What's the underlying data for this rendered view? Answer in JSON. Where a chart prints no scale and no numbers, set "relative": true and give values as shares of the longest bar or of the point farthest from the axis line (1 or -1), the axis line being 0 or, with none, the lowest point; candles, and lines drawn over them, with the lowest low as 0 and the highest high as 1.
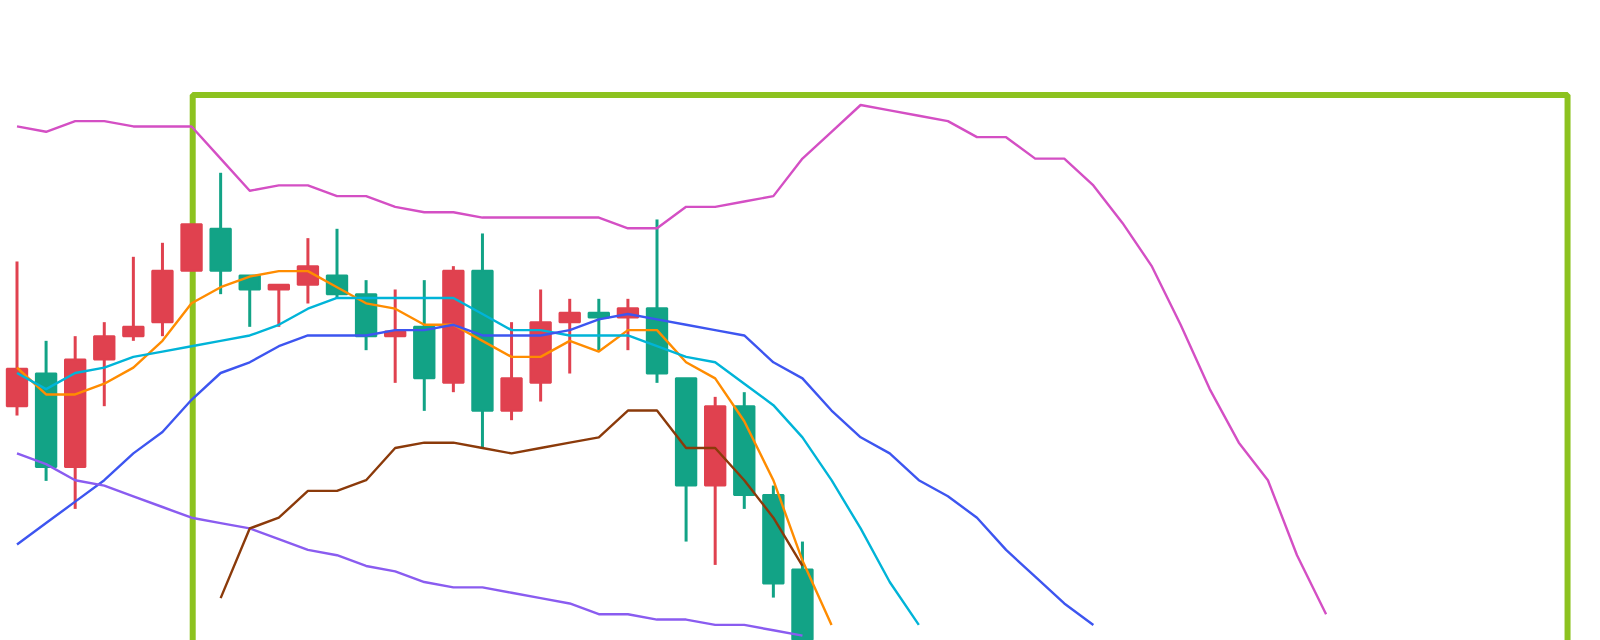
{
  "chart_data": [
    {
      "type": "candlestick",
      "relative": true,
      "tick_labels": false,
      "categories": [
        null,
        null,
        null,
        null,
        null,
        null,
        null,
        null,
        null,
        null,
        null,
        null,
        null,
        null,
        null,
        null,
        null,
        null,
        null,
        null,
        null,
        null,
        null,
        null,
        null,
        null,
        null,
        null
      ],
      "ohlc": [
        [
          0.5,
          0.81,
          0.48,
          0.58
        ],
        [
          0.57,
          0.64,
          0.34,
          0.37
        ],
        [
          0.37,
          0.65,
          0.28,
          0.6
        ],
        [
          0.6,
          0.68,
          0.5,
          0.65
        ],
        [
          0.65,
          0.82,
          0.64,
          0.67
        ],
        [
          0.68,
          0.85,
          0.65,
          0.79
        ],
        [
          0.79,
          0.89,
          0.79,
          0.89
        ],
        [
          0.88,
          1.0,
          0.74,
          0.79
        ],
        [
          0.78,
          0.78,
          0.67,
          0.75
        ],
        [
          0.75,
          0.76,
          0.67,
          0.76
        ],
        [
          0.76,
          0.86,
          0.72,
          0.8
        ],
        [
          0.78,
          0.88,
          0.73,
          0.74
        ],
        [
          0.74,
          0.77,
          0.62,
          0.65
        ],
        [
          0.65,
          0.75,
          0.55,
          0.66
        ],
        [
          0.67,
          0.77,
          0.49,
          0.56
        ],
        [
          0.55,
          0.8,
          0.53,
          0.79
        ],
        [
          0.79,
          0.87,
          0.41,
          0.49
        ],
        [
          0.49,
          0.68,
          0.47,
          0.56
        ],
        [
          0.55,
          0.75,
          0.51,
          0.68
        ],
        [
          0.68,
          0.73,
          0.57,
          0.7
        ],
        [
          0.7,
          0.73,
          0.62,
          0.69
        ],
        [
          0.69,
          0.73,
          0.62,
          0.71
        ],
        [
          0.71,
          0.9,
          0.55,
          0.57
        ],
        [
          0.56,
          0.56,
          0.21,
          0.33
        ],
        [
          0.33,
          0.52,
          0.16,
          0.5
        ],
        [
          0.5,
          0.53,
          0.28,
          0.31
        ],
        [
          0.31,
          0.33,
          0.09,
          0.12
        ],
        [
          0.15,
          0.21,
          0.0,
          0.0
        ]
      ],
      "colors": [
        "#e0414f",
        "#12a386",
        "#e0414f",
        "#e0414f",
        "#e0414f",
        "#e0414f",
        "#e0414f",
        "#12a386",
        "#12a386",
        "#e0414f",
        "#e0414f",
        "#12a386",
        "#12a386",
        "#e0414f",
        "#12a386",
        "#e0414f",
        "#12a386",
        "#e0414f",
        "#e0414f",
        "#e0414f",
        "#12a386",
        "#e0414f",
        "#12a386",
        "#12a386",
        "#e0414f",
        "#12a386",
        "#12a386",
        "#12a386"
      ]
    },
    {
      "type": "line",
      "relative": true,
      "tick_labels": false,
      "categories": [
        null,
        null,
        null,
        null,
        null,
        null,
        null,
        null,
        null,
        null,
        null,
        null,
        null,
        null,
        null,
        null,
        null,
        null,
        null,
        null,
        null,
        null,
        null,
        null,
        null,
        null,
        null,
        null,
        null,
        null,
        null,
        null,
        null,
        null,
        null,
        null,
        null,
        null,
        null,
        null,
        null,
        null,
        null,
        null,
        null,
        null
      ],
      "series": [
        {
          "color": "#d44fc4",
          "values": [
            0.96,
            0.95,
            0.97,
            0.97,
            0.96,
            0.96,
            0.96,
            0.9,
            0.84,
            0.85,
            0.85,
            0.83,
            0.83,
            0.81,
            0.8,
            0.8,
            0.79,
            0.79,
            0.79,
            0.79,
            0.79,
            0.77,
            0.77,
            0.81,
            0.81,
            0.82,
            0.83,
            0.9,
            0.95,
            1.0,
            0.99,
            0.98,
            0.97,
            0.94,
            0.94,
            0.9,
            0.9,
            0.85,
            0.78,
            0.7,
            0.59,
            0.47,
            0.37,
            0.3,
            0.16,
            0.05
          ]
        },
        {
          "color": "#ff8c00",
          "values": [
            0.51,
            0.46,
            0.46,
            0.48,
            0.51,
            0.56,
            0.63,
            0.66,
            0.68,
            0.69,
            0.69,
            0.66,
            0.63,
            0.62,
            0.59,
            0.59,
            0.56,
            0.53,
            0.53,
            0.56,
            0.54,
            0.58,
            0.58,
            0.52,
            0.49,
            0.41,
            0.3,
            0.15,
            0.03,
            null,
            null,
            null,
            null,
            null,
            null,
            null,
            null,
            null,
            null,
            null,
            null,
            null,
            null,
            null,
            null,
            null
          ]
        },
        {
          "color": "#00b4d8",
          "values": [
            0.5,
            0.47,
            0.5,
            0.51,
            0.53,
            0.54,
            0.55,
            0.56,
            0.57,
            0.59,
            0.62,
            0.64,
            0.64,
            0.64,
            0.64,
            0.64,
            0.61,
            0.58,
            0.58,
            0.57,
            0.57,
            0.57,
            0.55,
            0.53,
            0.52,
            0.48,
            0.44,
            0.38,
            0.3,
            0.21,
            0.11,
            0.03,
            null,
            null,
            null,
            null,
            null,
            null,
            null,
            null,
            null,
            null,
            null,
            null,
            null,
            null
          ]
        },
        {
          "color": "#3d55f0",
          "values": [
            0.18,
            0.22,
            0.26,
            0.3,
            0.35,
            0.39,
            0.45,
            0.5,
            0.52,
            0.55,
            0.57,
            0.57,
            0.57,
            0.58,
            0.58,
            0.59,
            0.57,
            0.57,
            0.57,
            0.58,
            0.6,
            0.61,
            0.6,
            0.59,
            0.58,
            0.57,
            0.52,
            0.49,
            0.43,
            0.38,
            0.35,
            0.3,
            0.27,
            0.23,
            0.17,
            0.12,
            0.07,
            0.03,
            null,
            null,
            null,
            null,
            null,
            null,
            null,
            null
          ]
        },
        {
          "color": "#8a5cf0",
          "values": [
            0.35,
            0.33,
            0.3,
            0.29,
            0.27,
            0.25,
            0.23,
            0.22,
            0.21,
            0.19,
            0.17,
            0.16,
            0.14,
            0.13,
            0.11,
            0.1,
            0.1,
            0.09,
            0.08,
            0.07,
            0.05,
            0.05,
            0.04,
            0.04,
            0.03,
            0.03,
            0.02,
            0.01,
            null,
            null,
            null,
            null,
            null,
            null,
            null,
            null,
            null,
            null,
            null,
            null,
            null,
            null,
            null,
            null,
            null,
            null
          ]
        },
        {
          "color": "#8b3a0a",
          "values": [
            null,
            null,
            null,
            null,
            null,
            null,
            null,
            0.08,
            0.21,
            0.23,
            0.28,
            0.28,
            0.3,
            0.36,
            0.37,
            0.37,
            0.36,
            0.35,
            0.36,
            0.37,
            0.38,
            0.43,
            0.43,
            0.36,
            0.36,
            0.3,
            0.23,
            0.14,
            null,
            null,
            null,
            null,
            null,
            null,
            null,
            null,
            null,
            null,
            null,
            null,
            null,
            null,
            null,
            null,
            null,
            null
          ]
        }
      ]
    }
  ]
}
